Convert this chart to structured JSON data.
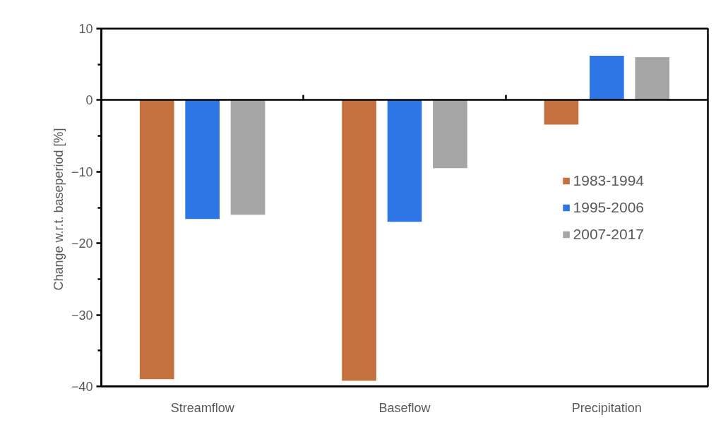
{
  "chart_data": {
    "type": "bar",
    "ylabel": "Change  w.r.t. baseperiod [%]",
    "categories": [
      "Streamflow",
      "Baseflow",
      "Precipitation"
    ],
    "series": [
      {
        "name": "1983-1994",
        "color": "#c5703f",
        "values": [
          -39.0,
          -39.2,
          -3.4
        ]
      },
      {
        "name": "1995-2006",
        "color": "#2e75e6",
        "values": [
          -16.6,
          -17.0,
          6.2
        ]
      },
      {
        "name": "2007-2017",
        "color": "#a5a5a5",
        "values": [
          -16.0,
          -9.5,
          6.0
        ]
      }
    ],
    "ylim": [
      -40,
      10
    ],
    "yticks": [
      -40,
      {
        "value": -35,
        "label": null
      },
      -30,
      {
        "value": -25,
        "label": null
      },
      -20,
      {
        "value": -15,
        "label": null
      },
      -10,
      {
        "value": -5,
        "label": null
      },
      0,
      {
        "value": 5,
        "label": null
      },
      10
    ],
    "legend": "right"
  }
}
